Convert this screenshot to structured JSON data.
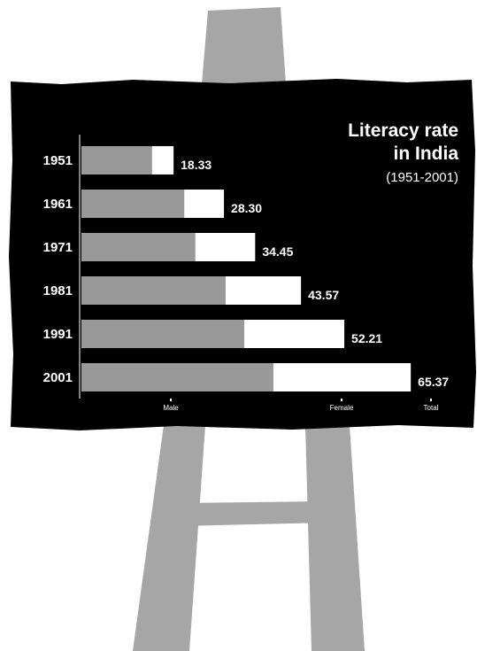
{
  "chart_data": {
    "type": "bar",
    "orientation": "horizontal",
    "title_line1": "Literacy rate",
    "title_line2": "in India",
    "subtitle": "(1951-2001)",
    "categories": [
      "1951",
      "1961",
      "1971",
      "1981",
      "1991",
      "2001"
    ],
    "total_labels": [
      "18.33",
      "28.30",
      "34.45",
      "43.57",
      "52.21",
      "65.37"
    ],
    "series": [
      {
        "name": "Male",
        "values": [
          14.0,
          20.4,
          22.6,
          28.6,
          32.3,
          38.1
        ],
        "color": "#999999"
      },
      {
        "name": "Female",
        "values": [
          4.3,
          7.9,
          11.9,
          15.0,
          19.9,
          27.3
        ],
        "color": "#ffffff"
      }
    ],
    "totals": [
      18.33,
      28.3,
      34.45,
      43.57,
      52.21,
      65.37
    ],
    "legend": [
      "Male",
      "Female",
      "Total"
    ],
    "xlim": [
      0,
      65.37
    ],
    "colors": {
      "board": "#000000",
      "easel": "#a6a6a6",
      "male": "#999999",
      "female": "#ffffff"
    }
  }
}
